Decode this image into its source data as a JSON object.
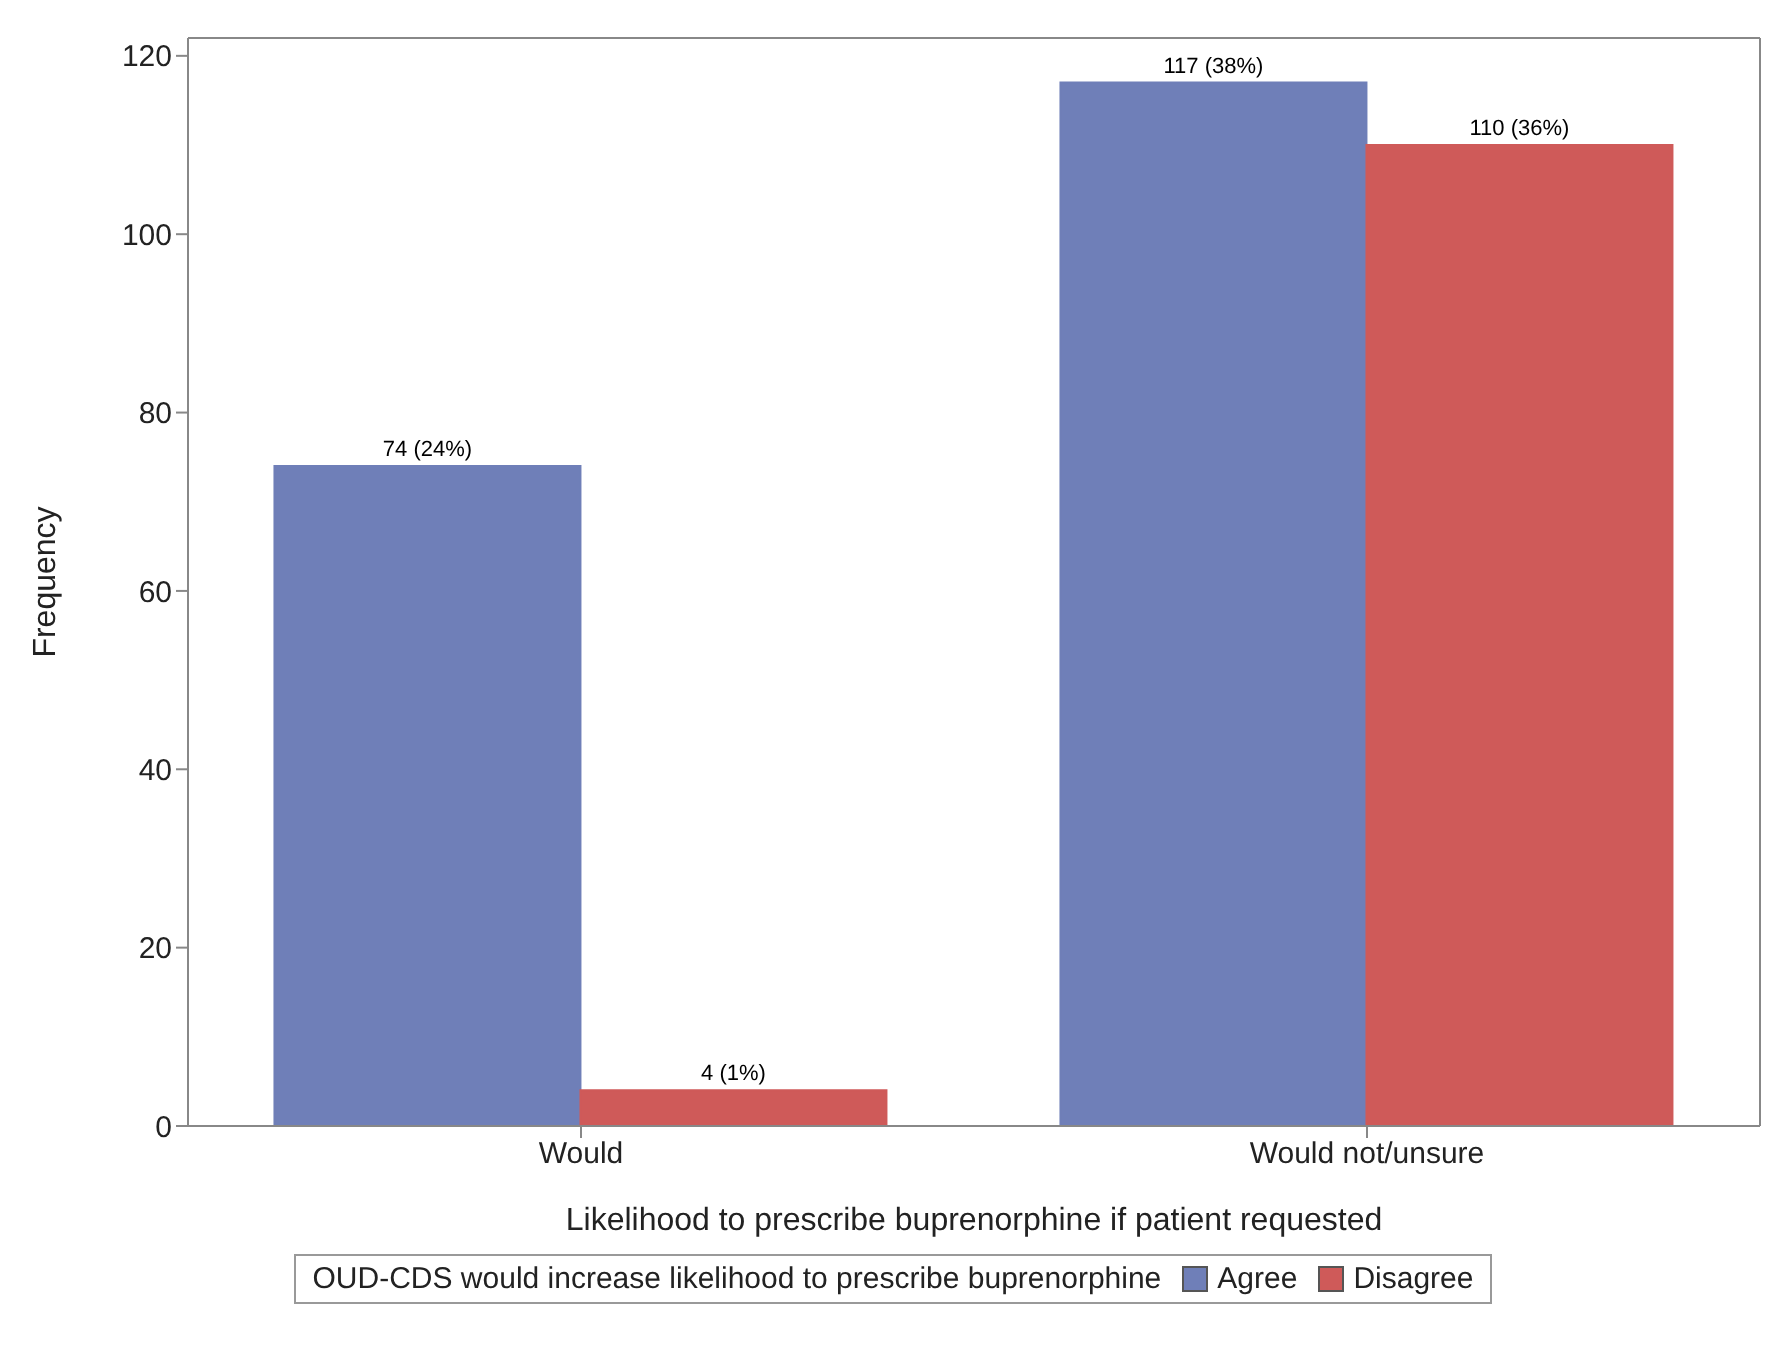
{
  "chart_data": {
    "type": "bar",
    "xlabel": "Likelihood to prescribe buprenorphine if patient requested",
    "ylabel": "Frequency",
    "legend_title": "OUD-CDS would increase likelihood to prescribe buprenorphine",
    "categories": [
      "Would",
      "Would not/unsure"
    ],
    "series": [
      {
        "name": "Agree",
        "color": "#6f7fb8",
        "values": [
          74,
          117
        ],
        "value_labels": [
          "74 (24%)",
          "117 (38%)"
        ]
      },
      {
        "name": "Disagree",
        "color": "#cf5a59",
        "values": [
          4,
          110
        ],
        "value_labels": [
          "4 (1%)",
          "110 (36%)"
        ]
      }
    ],
    "ylim": [
      0,
      122
    ],
    "yticks": [
      0,
      20,
      40,
      60,
      80,
      100,
      120
    ],
    "grid": false,
    "legend": "bottom"
  }
}
